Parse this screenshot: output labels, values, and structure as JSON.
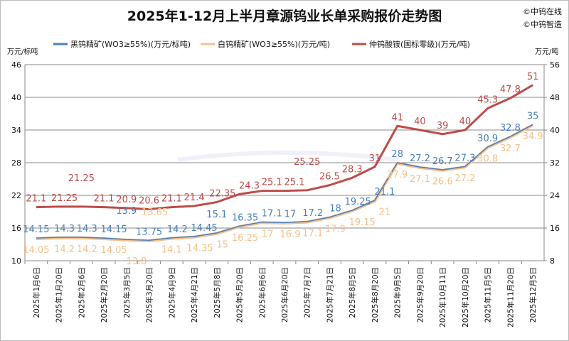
{
  "title": "2025年1-12月上半月章源钨业长单采购报价走势图",
  "copyright": [
    "©中钨在线",
    "©中钨智造"
  ],
  "watermark": "www.chinatungsten.com",
  "chart_data": {
    "type": "line",
    "title": "2025年1-12月上半月章源钨业长单采购报价走势图",
    "y_left_label": "万元/标吨",
    "y_right_label": "万元/吨",
    "y_left": {
      "min": 10,
      "max": 46,
      "ticks": [
        10,
        16,
        22,
        28,
        34,
        40,
        46
      ]
    },
    "y_right": {
      "min": 8,
      "max": 56,
      "ticks": [
        8,
        16,
        24,
        32,
        40,
        48,
        56
      ]
    },
    "grid": true,
    "legend_position": "top",
    "categories": [
      "2025年1月6日",
      "2025年1月20日",
      "2025年2月6日",
      "2025年2月20日",
      "2025年3月5日",
      "2025年3月20日",
      "2025年4月9日",
      "2025年4月21日",
      "2025年5月8日",
      "2025年5月20日",
      "2025年6月6日",
      "2025年6月20日",
      "2025年7月7日",
      "2025年7月21日",
      "2025年8月5日",
      "2025年8月20日",
      "2025年9月5日",
      "2025年9月20日",
      "2025年10月11日",
      "2025年10月20日",
      "2025年11月5日",
      "2025年11月20日",
      "2025年12月5日"
    ],
    "series": [
      {
        "name": "黑钨精矿(WO3≥55%)(万元/标吨)",
        "axis": "left",
        "color": "#4a7ebb",
        "label_pos": "above",
        "values": [
          14.15,
          14.3,
          14.3,
          14.15,
          13.9,
          13.75,
          14.2,
          14.45,
          15.1,
          16.35,
          17.1,
          17,
          17.2,
          18,
          19.25,
          21.1,
          28,
          27.2,
          26.7,
          27.3,
          30.9,
          32.8,
          35
        ]
      },
      {
        "name": "白钨精矿(WO3≥55%)(万元/吨)",
        "axis": "left",
        "color": "#f5c08d",
        "label_pos": "below",
        "values": [
          14.05,
          14.2,
          14.2,
          14.05,
          13.8,
          13.65,
          14.1,
          14.35,
          15,
          16.25,
          17,
          16.9,
          17.1,
          17.9,
          19.15,
          21,
          27.9,
          27.1,
          26.6,
          27.2,
          30.8,
          32.7,
          34.9
        ]
      },
      {
        "name": "仲钨酸铵(国标零级)(万元/吨)",
        "axis": "right",
        "color": "#be4b48",
        "label_pos": "above",
        "values": [
          21.1,
          21.25,
          21.25,
          21.1,
          20.9,
          20.6,
          21.1,
          21.4,
          22.35,
          24.3,
          25.1,
          25.1,
          25.25,
          26.5,
          28.3,
          31,
          41,
          40,
          39,
          40,
          45.3,
          47.8,
          51
        ]
      }
    ]
  }
}
